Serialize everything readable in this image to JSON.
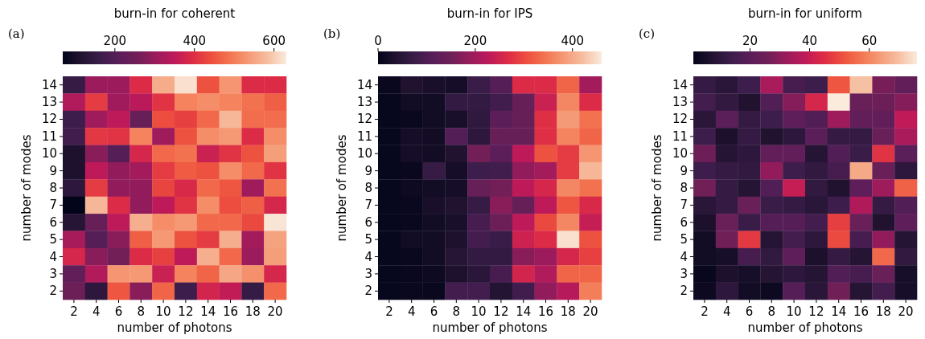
{
  "chart_data": [
    {
      "type": "heatmap",
      "title": "(a)",
      "clabel": "burn-in for coherent",
      "xlabel": "number of photons",
      "ylabel": "number of modes",
      "categories": [
        "2",
        "4",
        "6",
        "8",
        "10",
        "12",
        "14",
        "16",
        "18",
        "20"
      ],
      "y_categories": [
        "14",
        "13",
        "12",
        "11",
        "10",
        "9",
        "8",
        "7",
        "6",
        "5",
        "4",
        "3",
        "2"
      ],
      "clim": [
        69,
        631
      ],
      "cticks": [
        200,
        400,
        600
      ],
      "cells": [
        [
          153,
          305,
          305,
          395,
          560,
          620,
          445,
          530,
          395,
          395
        ],
        [
          333,
          417,
          310,
          345,
          406,
          507,
          519,
          507,
          485,
          462
        ],
        [
          165,
          310,
          350,
          238,
          440,
          423,
          474,
          575,
          480,
          480
        ],
        [
          170,
          412,
          406,
          507,
          310,
          445,
          519,
          535,
          395,
          519
        ],
        [
          108,
          283,
          204,
          384,
          474,
          485,
          367,
          406,
          445,
          541
        ],
        [
          108,
          350,
          294,
          316,
          417,
          457,
          445,
          519,
          474,
          406
        ],
        [
          136,
          417,
          294,
          294,
          429,
          389,
          474,
          451,
          310,
          485
        ],
        [
          69,
          575,
          395,
          294,
          350,
          406,
          519,
          440,
          462,
          384
        ],
        [
          125,
          238,
          350,
          564,
          519,
          535,
          474,
          474,
          434,
          625
        ],
        [
          322,
          204,
          283,
          462,
          535,
          445,
          417,
          564,
          316,
          547
        ],
        [
          384,
          283,
          260,
          395,
          423,
          350,
          564,
          474,
          305,
          541
        ],
        [
          226,
          333,
          530,
          535,
          367,
          507,
          468,
          552,
          524,
          384
        ],
        [
          249,
          136,
          451,
          283,
          468,
          165,
          378,
          356,
          153,
          474
        ]
      ]
    },
    {
      "type": "heatmap",
      "title": "(b)",
      "clabel": "burn-in for IPS",
      "xlabel": "number of photons",
      "ylabel": "number of modes",
      "categories": [
        "2",
        "4",
        "6",
        "8",
        "10",
        "12",
        "14",
        "16",
        "18",
        "20"
      ],
      "y_categories": [
        "14",
        "13",
        "12",
        "11",
        "10",
        "9",
        "8",
        "7",
        "6",
        "5",
        "4",
        "3",
        "2"
      ],
      "clim": [
        0,
        460
      ],
      "cticks": [
        0,
        200,
        400
      ],
      "cells": [
        [
          9,
          37,
          28,
          23,
          74,
          110,
          267,
          267,
          327,
          202
        ],
        [
          5,
          18,
          18,
          64,
          64,
          83,
          138,
          244,
          363,
          267
        ],
        [
          5,
          9,
          18,
          28,
          60,
          120,
          138,
          271,
          382,
          340
        ],
        [
          5,
          23,
          18,
          106,
          55,
          138,
          138,
          271,
          359,
          327
        ],
        [
          5,
          23,
          18,
          37,
          156,
          120,
          230,
          308,
          285,
          377
        ],
        [
          5,
          9,
          69,
          23,
          78,
          83,
          184,
          202,
          285,
          414
        ],
        [
          5,
          14,
          18,
          23,
          138,
          156,
          230,
          258,
          363,
          340
        ],
        [
          5,
          9,
          28,
          37,
          69,
          175,
          138,
          230,
          313,
          262
        ],
        [
          5,
          9,
          18,
          28,
          92,
          147,
          230,
          299,
          363,
          239
        ],
        [
          5,
          18,
          18,
          32,
          87,
          74,
          248,
          267,
          451,
          308
        ],
        [
          5,
          9,
          18,
          46,
          64,
          64,
          175,
          193,
          258,
          290
        ],
        [
          5,
          9,
          14,
          32,
          51,
          92,
          253,
          216,
          327,
          327
        ],
        [
          5,
          9,
          9,
          87,
          87,
          41,
          83,
          184,
          221,
          354
        ]
      ]
    },
    {
      "type": "heatmap",
      "title": "(c)",
      "clabel": "burn-in for uniform",
      "xlabel": "number of photons",
      "ylabel": "number of modes",
      "categories": [
        "2",
        "4",
        "6",
        "8",
        "10",
        "12",
        "14",
        "16",
        "18",
        "20"
      ],
      "y_categories": [
        "14",
        "13",
        "12",
        "11",
        "10",
        "9",
        "8",
        "7",
        "6",
        "5",
        "4",
        "3",
        "2"
      ],
      "clim": [
        1,
        76
      ],
      "cticks": [
        20,
        40,
        60
      ],
      "cells": [
        [
          12,
          9,
          14,
          35,
          16,
          14,
          52,
          70,
          27,
          22
        ],
        [
          15,
          11,
          7,
          18,
          29,
          43,
          76,
          24,
          25,
          29
        ],
        [
          9,
          20,
          12,
          14,
          21,
          18,
          33,
          22,
          22,
          39
        ],
        [
          14,
          6,
          12,
          7,
          10,
          20,
          12,
          12,
          24,
          35
        ],
        [
          25,
          8,
          10,
          22,
          22,
          8,
          18,
          13,
          46,
          20
        ],
        [
          14,
          12,
          11,
          31,
          14,
          11,
          16,
          66,
          24,
          10
        ],
        [
          26,
          12,
          8,
          18,
          40,
          11,
          7,
          21,
          33,
          54
        ],
        [
          9,
          12,
          24,
          13,
          12,
          9,
          14,
          36,
          12,
          18
        ],
        [
          6,
          24,
          13,
          19,
          19,
          15,
          48,
          24,
          7,
          21
        ],
        [
          4,
          26,
          47,
          8,
          15,
          10,
          50,
          16,
          31,
          8
        ],
        [
          4,
          5,
          16,
          11,
          21,
          6,
          12,
          8,
          55,
          11
        ],
        [
          2,
          6,
          5,
          8,
          10,
          8,
          18,
          16,
          24,
          5
        ],
        [
          3,
          10,
          4,
          3,
          19,
          9,
          26,
          8,
          15,
          5
        ]
      ]
    }
  ]
}
